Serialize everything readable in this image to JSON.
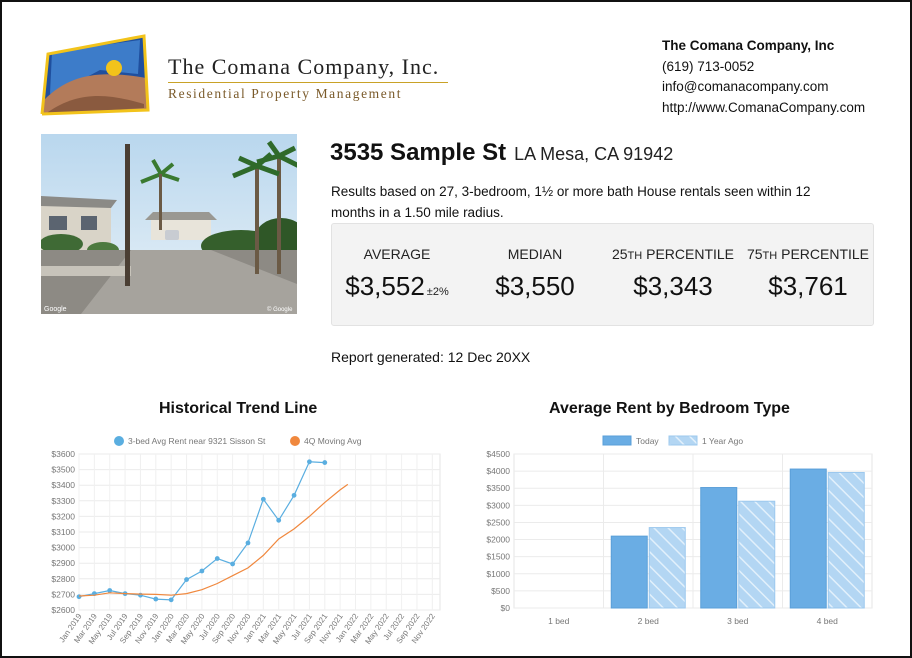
{
  "company": {
    "name": "The Comana Company, Inc.",
    "tagline": "Residential Property Management",
    "contact": {
      "name": "The Comana Company, Inc",
      "phone": "(619) 713-0052",
      "email": "info@comanacompany.com",
      "website": "http://www.ComanaCompany.com"
    }
  },
  "property": {
    "street": "3535 Sample St",
    "city": "LA Mesa, CA 91942",
    "results_text": "Results based on 27, 3-bedroom, 1½ or more bath House rentals seen within 12 months in a 1.50 mile radius."
  },
  "stats": {
    "average_label": "AVERAGE",
    "average_value": "$3,552",
    "average_pm": "±2%",
    "median_label": "MEDIAN",
    "median_value": "$3,550",
    "p25_num": "25",
    "p25_sup": "TH",
    "p25_word": " PERCENTILE",
    "p25_value": "$3,343",
    "p75_num": "75",
    "p75_sup": "TH",
    "p75_word": " PERCENTILE",
    "p75_value": "$3,761"
  },
  "report": {
    "generated": "Report generated: 12 Dec 20XX"
  },
  "photo": {
    "watermark_left": "Google",
    "watermark_right": "© Google"
  },
  "colors": {
    "series_blue": "#5aaee0",
    "series_orange": "#f0883e",
    "bar_today": "#6aade4",
    "bar_last_year": "#b3d6f3"
  },
  "chart_data": [
    {
      "type": "line",
      "title": "Historical Trend Line",
      "x": [
        "Jan 2019",
        "Mar 2019",
        "May 2019",
        "Jul 2019",
        "Sep 2019",
        "Nov 2019",
        "Jan 2020",
        "Mar 2020",
        "May 2020",
        "Jul 2020",
        "Sep 2020",
        "Nov 2020",
        "Jan 2021",
        "Mar 2021",
        "May 2021",
        "Jul 2021",
        "Sep 2021",
        "Nov 2021",
        "Jan 2022",
        "Mar 2022",
        "May 2022",
        "Jul 2022",
        "Sep 2022",
        "Nov 2022"
      ],
      "ylim": [
        2600,
        3600
      ],
      "yticks": [
        "$2600",
        "$2700",
        "$2800",
        "$2900",
        "$3000",
        "$3100",
        "$3200",
        "$3300",
        "$3400",
        "$3500",
        "$3600"
      ],
      "grid": true,
      "legend_position": "top",
      "series": [
        {
          "name": "3-bed Avg Rent near 9321 Sisson St",
          "marker": true,
          "points": [
            [
              0,
              2685
            ],
            [
              2,
              2705
            ],
            [
              4,
              2725
            ],
            [
              6,
              2705
            ],
            [
              8,
              2695
            ],
            [
              10,
              2670
            ],
            [
              12,
              2665
            ],
            [
              14,
              2795
            ],
            [
              16,
              2850
            ],
            [
              18,
              2930
            ],
            [
              20,
              2895
            ],
            [
              22,
              3030
            ],
            [
              24,
              3310
            ],
            [
              26,
              3175
            ],
            [
              28,
              3335
            ],
            [
              30,
              3550
            ],
            [
              32,
              3545
            ]
          ]
        },
        {
          "name": "4Q Moving Avg",
          "marker": false,
          "points": [
            [
              0,
              2690
            ],
            [
              2,
              2695
            ],
            [
              4,
              2710
            ],
            [
              6,
              2705
            ],
            [
              8,
              2702
            ],
            [
              10,
              2700
            ],
            [
              12,
              2695
            ],
            [
              14,
              2705
            ],
            [
              16,
              2730
            ],
            [
              18,
              2770
            ],
            [
              20,
              2820
            ],
            [
              22,
              2870
            ],
            [
              24,
              2950
            ],
            [
              26,
              3055
            ],
            [
              28,
              3120
            ],
            [
              30,
              3200
            ],
            [
              32,
              3290
            ],
            [
              34,
              3370
            ],
            [
              35,
              3405
            ]
          ]
        }
      ]
    },
    {
      "type": "bar",
      "title": "Average Rent by Bedroom Type",
      "categories": [
        "1 bed",
        "2 bed",
        "3 bed",
        "4 bed"
      ],
      "ylim": [
        0,
        4500
      ],
      "yticks": [
        "$0",
        "$500",
        "$1000",
        "$1500",
        "$2000",
        "$2500",
        "$3000",
        "$3500",
        "$4000",
        "$4500"
      ],
      "grid": true,
      "legend_position": "top",
      "series": [
        {
          "name": "Today",
          "values": [
            0,
            2100,
            3520,
            4060
          ]
        },
        {
          "name": "1 Year Ago",
          "values": [
            0,
            2350,
            3120,
            3960
          ]
        }
      ]
    }
  ]
}
